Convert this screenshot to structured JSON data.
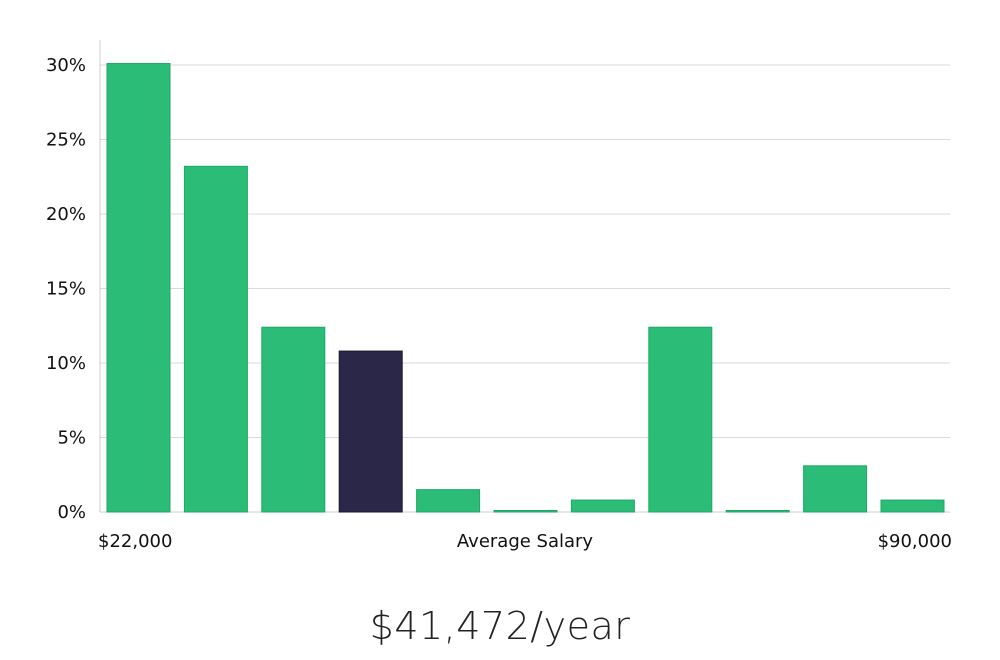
{
  "chart_data": {
    "type": "bar",
    "title": "",
    "xlabel": "Average Salary",
    "ylabel": "",
    "ylim": [
      0,
      30
    ],
    "y_ticks": [
      0,
      5,
      10,
      15,
      20,
      25,
      30
    ],
    "y_tick_labels": [
      "0%",
      "5%",
      "10%",
      "15%",
      "20%",
      "25%",
      "30%"
    ],
    "x_min_label": "$22,000",
    "x_max_label": "$90,000",
    "values": [
      30.1,
      23.2,
      12.4,
      10.8,
      1.5,
      0.05,
      0.8,
      12.4,
      0.05,
      3.1,
      0.8
    ],
    "highlight_index": 3,
    "colors": {
      "bar": "#2bbd78",
      "bar_border": "#1fa866",
      "highlight": "#2a2748",
      "grid": "#d9d9d9",
      "axis": "#cccccc",
      "text": "#111111"
    },
    "grid": true
  },
  "salary": {
    "value_text": "$41,472/year"
  }
}
